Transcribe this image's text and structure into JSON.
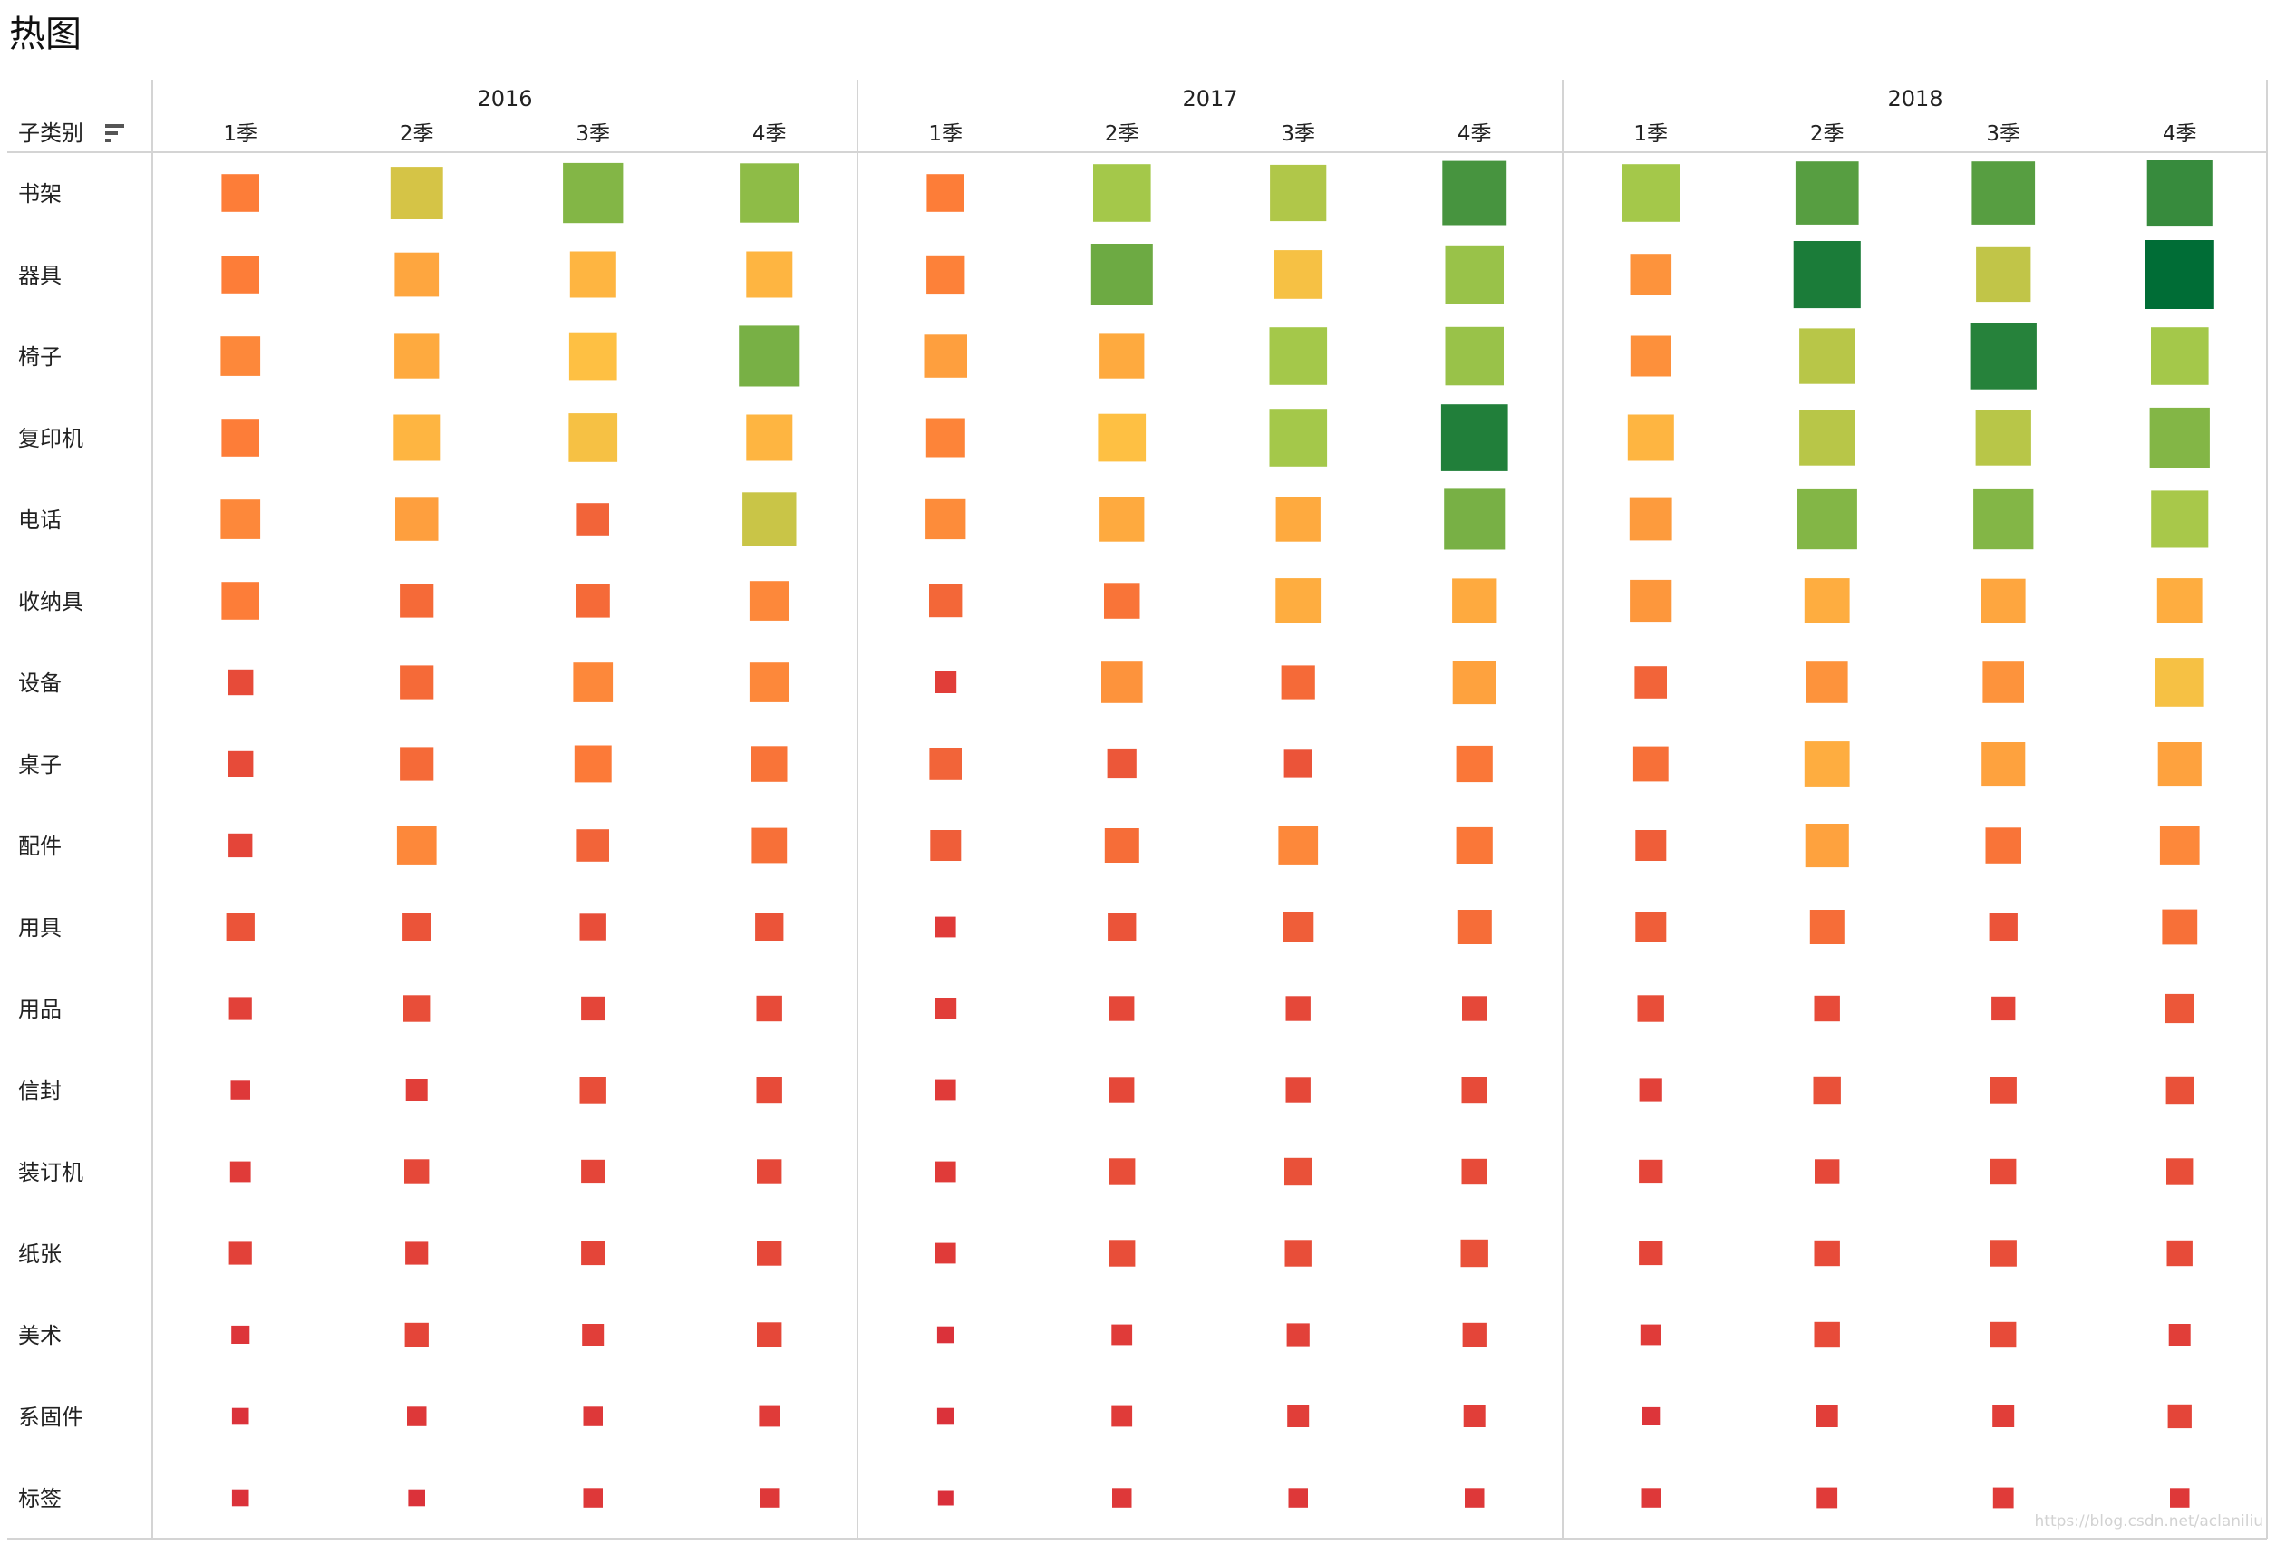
{
  "title": "热图",
  "row_header": "子类别",
  "sort_icon": "sort-descending-icon",
  "watermark": "https://blog.csdn.net/aclaniliu",
  "colors": {
    "low": "#d31f3a",
    "mid_low": "#fd7d38",
    "mid": "#fec043",
    "mid_high": "#a4c84a",
    "high": "#006d36",
    "grid": "#d4d4d4"
  },
  "chart_data": {
    "type": "heatmap",
    "title": "热图",
    "xlabel": "",
    "ylabel": "子类别",
    "years": [
      "2016",
      "2017",
      "2018"
    ],
    "quarters": [
      "1季",
      "2季",
      "3季",
      "4季"
    ],
    "categories": [
      "书架",
      "器具",
      "椅子",
      "复印机",
      "电话",
      "收纳具",
      "设备",
      "桌子",
      "配件",
      "用具",
      "用品",
      "信封",
      "装订机",
      "纸张",
      "美术",
      "系固件",
      "标签"
    ],
    "value_range": [
      0,
      100
    ],
    "values": [
      [
        30,
        58,
        76,
        74,
        30,
        70,
        67,
        87,
        70,
        84,
        84,
        90
      ],
      [
        30,
        41,
        45,
        45,
        31,
        80,
        50,
        72,
        36,
        95,
        63,
        100
      ],
      [
        33,
        42,
        48,
        78,
        39,
        42,
        70,
        72,
        35,
        65,
        93,
        70
      ],
      [
        30,
        45,
        50,
        45,
        32,
        48,
        70,
        94,
        45,
        65,
        65,
        76
      ],
      [
        33,
        39,
        22,
        61,
        34,
        42,
        42,
        78,
        38,
        76,
        76,
        69
      ],
      [
        30,
        24,
        24,
        33,
        23,
        27,
        43,
        42,
        37,
        43,
        41,
        43
      ],
      [
        14,
        24,
        33,
        33,
        10,
        36,
        24,
        40,
        22,
        36,
        36,
        50
      ],
      [
        14,
        24,
        29,
        27,
        22,
        18,
        17,
        28,
        26,
        43,
        40,
        40
      ],
      [
        12,
        33,
        22,
        26,
        20,
        25,
        33,
        28,
        20,
        40,
        27,
        33
      ],
      [
        17,
        17,
        15,
        17,
        9,
        17,
        20,
        25,
        20,
        25,
        17,
        26
      ],
      [
        11,
        15,
        12,
        14,
        10,
        13,
        13,
        13,
        15,
        14,
        12,
        18
      ],
      [
        8,
        10,
        15,
        14,
        9,
        13,
        13,
        14,
        11,
        16,
        15,
        16
      ],
      [
        9,
        13,
        12,
        13,
        9,
        15,
        16,
        14,
        12,
        13,
        14,
        15
      ],
      [
        11,
        11,
        12,
        13,
        9,
        15,
        15,
        16,
        12,
        14,
        15,
        14
      ],
      [
        7,
        12,
        10,
        13,
        6,
        9,
        11,
        12,
        9,
        14,
        14,
        10
      ],
      [
        6,
        8,
        8,
        9,
        6,
        9,
        10,
        10,
        7,
        10,
        10,
        12
      ],
      [
        6,
        6,
        8,
        8,
        5,
        8,
        8,
        8,
        8,
        9,
        9,
        8
      ]
    ],
    "size_legend": "none",
    "color_legend": "none",
    "grid": false
  }
}
